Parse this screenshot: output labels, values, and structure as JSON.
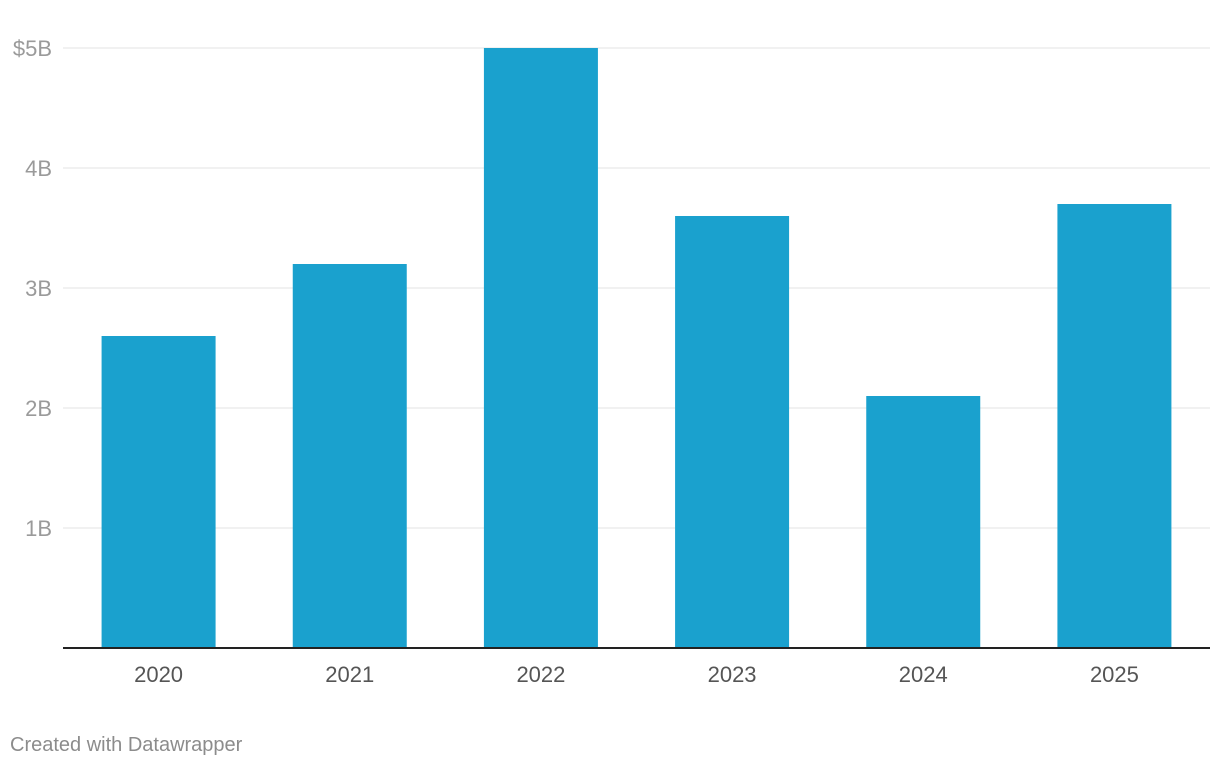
{
  "chart_data": {
    "type": "bar",
    "title": "",
    "xlabel": "",
    "ylabel": "",
    "categories": [
      "2020",
      "2021",
      "2022",
      "2023",
      "2024",
      "2025"
    ],
    "values": [
      2.6,
      3.2,
      5.0,
      3.6,
      2.1,
      3.7
    ],
    "unit": "billions of dollars",
    "ylim": [
      0,
      5
    ],
    "y_ticks": [
      {
        "value": 1,
        "label": "1B"
      },
      {
        "value": 2,
        "label": "2B"
      },
      {
        "value": 3,
        "label": "3B"
      },
      {
        "value": 4,
        "label": "4B"
      },
      {
        "value": 5,
        "label": "$5B"
      }
    ],
    "grid": true,
    "bar_color": "#1aa1ce",
    "grid_color": "#e3e3e3",
    "axis_color": "#222222"
  },
  "footer": {
    "credit": "Created with Datawrapper"
  }
}
